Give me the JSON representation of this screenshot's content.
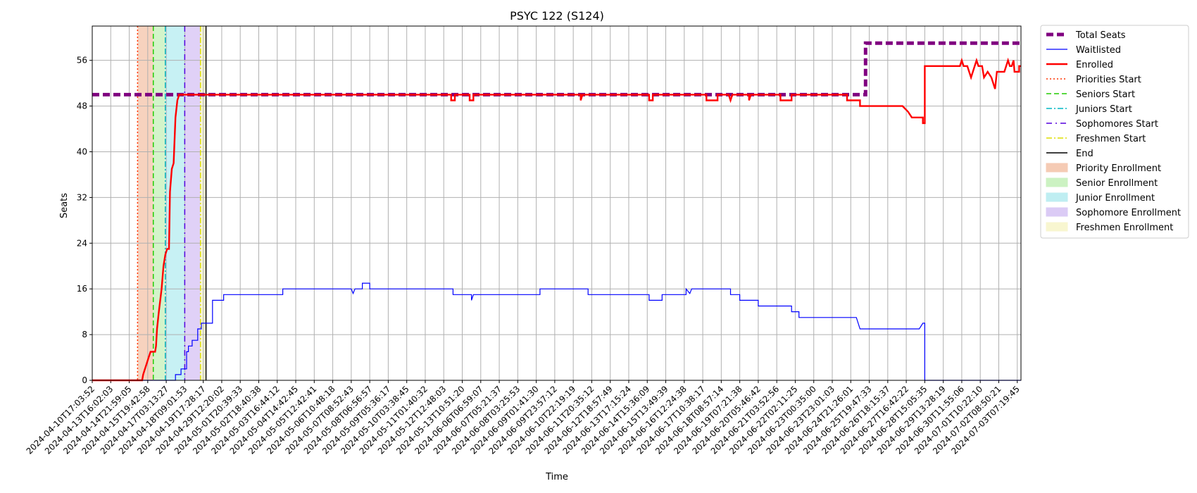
{
  "chart_data": {
    "type": "line",
    "title": "PSYC 122 (S124)",
    "xlabel": "Time",
    "ylabel": "Seats",
    "ylim": [
      0,
      62
    ],
    "yticks": [
      0,
      8,
      16,
      24,
      32,
      40,
      48,
      56
    ],
    "grid": true,
    "legend_position": "outside-right",
    "xtick_labels": [
      "2024-04-10T17:03:52",
      "2024-04-13T16:02:03",
      "2024-04-14T21:59:05",
      "2024-04-15T19:42:58",
      "2024-04-17T03:13:27",
      "2024-04-18T09:01:53",
      "2024-04-19T17:28:17",
      "2024-04-29T12:20:02",
      "2024-05-01T20:39:33",
      "2024-05-02T18:40:38",
      "2024-05-03T16:44:12",
      "2024-05-04T14:42:45",
      "2024-05-05T12:42:41",
      "2024-05-06T10:48:18",
      "2024-05-07T08:52:43",
      "2024-05-08T06:56:57",
      "2024-05-09T05:36:17",
      "2024-05-10T03:38:45",
      "2024-05-11T01:40:32",
      "2024-05-12T12:48:03",
      "2024-05-13T10:51:20",
      "2024-06-06T06:59:07",
      "2024-06-07T05:21:37",
      "2024-06-08T03:25:53",
      "2024-06-09T01:41:30",
      "2024-06-09T23:57:12",
      "2024-06-10T22:19:19",
      "2024-06-11T20:35:12",
      "2024-06-12T18:57:49",
      "2024-06-13T17:15:24",
      "2024-06-14T15:36:09",
      "2024-06-15T13:49:39",
      "2024-06-16T12:24:38",
      "2024-06-17T10:38:17",
      "2024-06-18T08:57:14",
      "2024-06-19T07:21:38",
      "2024-06-20T05:46:42",
      "2024-06-21T03:52:56",
      "2024-06-22T02:11:25",
      "2024-06-23T00:35:00",
      "2024-06-23T23:01:03",
      "2024-06-24T21:26:01",
      "2024-06-25T19:47:33",
      "2024-06-26T18:15:37",
      "2024-06-27T16:42:22",
      "2024-06-28T15:05:35",
      "2024-06-29T13:28:19",
      "2024-06-30T11:55:06",
      "2024-07-01T10:22:10",
      "2024-07-02T08:50:21",
      "2024-07-03T07:19:45"
    ],
    "xlim": [
      0,
      50.2
    ],
    "series": [
      {
        "name": "Total Seats",
        "color": "#800080",
        "style": "dashed-thick",
        "points": [
          [
            0,
            50
          ],
          [
            41.8,
            50
          ],
          [
            41.8,
            59
          ],
          [
            50.2,
            59
          ]
        ]
      },
      {
        "name": "Waitlisted",
        "color": "#0000ff",
        "style": "solid-thin",
        "points": [
          [
            0,
            0
          ],
          [
            4.5,
            0
          ],
          [
            4.5,
            1
          ],
          [
            4.8,
            1
          ],
          [
            4.8,
            2
          ],
          [
            5.1,
            2
          ],
          [
            5.1,
            5
          ],
          [
            5.2,
            5
          ],
          [
            5.2,
            6
          ],
          [
            5.4,
            6
          ],
          [
            5.4,
            7
          ],
          [
            5.7,
            7
          ],
          [
            5.7,
            9
          ],
          [
            5.9,
            9
          ],
          [
            5.9,
            10
          ],
          [
            6.5,
            10
          ],
          [
            6.5,
            14
          ],
          [
            7.1,
            14
          ],
          [
            7.1,
            15
          ],
          [
            10.3,
            15
          ],
          [
            10.3,
            16
          ],
          [
            14.0,
            16
          ],
          [
            14.1,
            15.2
          ],
          [
            14.2,
            16
          ],
          [
            14.6,
            16
          ],
          [
            14.6,
            17
          ],
          [
            15.0,
            17
          ],
          [
            15.0,
            16
          ],
          [
            19.5,
            16
          ],
          [
            19.5,
            15
          ],
          [
            20.5,
            15
          ],
          [
            20.5,
            14
          ],
          [
            20.6,
            15
          ],
          [
            24.2,
            15
          ],
          [
            24.2,
            16
          ],
          [
            26.8,
            16
          ],
          [
            26.8,
            15
          ],
          [
            30.1,
            15
          ],
          [
            30.1,
            14
          ],
          [
            30.8,
            14
          ],
          [
            30.8,
            15
          ],
          [
            32.1,
            15
          ],
          [
            32.1,
            16
          ],
          [
            32.3,
            15.2
          ],
          [
            32.4,
            16
          ],
          [
            34.5,
            16
          ],
          [
            34.5,
            15
          ],
          [
            35.0,
            15
          ],
          [
            35.0,
            14
          ],
          [
            36.0,
            14
          ],
          [
            36.0,
            13
          ],
          [
            37.8,
            13
          ],
          [
            37.8,
            12
          ],
          [
            38.2,
            12
          ],
          [
            38.2,
            11
          ],
          [
            41.3,
            11
          ],
          [
            41.4,
            10
          ],
          [
            41.5,
            9
          ],
          [
            44.7,
            9
          ],
          [
            44.9,
            10
          ],
          [
            45.0,
            10
          ],
          [
            45.0,
            0
          ],
          [
            50.2,
            0
          ]
        ]
      },
      {
        "name": "Enrolled",
        "color": "#ff0000",
        "style": "solid-thick",
        "points": [
          [
            0,
            0
          ],
          [
            2.7,
            0
          ],
          [
            2.75,
            1
          ],
          [
            2.85,
            2
          ],
          [
            2.95,
            3
          ],
          [
            3.05,
            4
          ],
          [
            3.15,
            5
          ],
          [
            3.4,
            5
          ],
          [
            3.45,
            6
          ],
          [
            3.5,
            9
          ],
          [
            3.6,
            12
          ],
          [
            3.75,
            16
          ],
          [
            3.85,
            20
          ],
          [
            3.95,
            22
          ],
          [
            4.05,
            23
          ],
          [
            4.15,
            23
          ],
          [
            4.2,
            33
          ],
          [
            4.3,
            37
          ],
          [
            4.4,
            38
          ],
          [
            4.45,
            42
          ],
          [
            4.5,
            46
          ],
          [
            4.6,
            49
          ],
          [
            4.7,
            50
          ],
          [
            19.4,
            50
          ],
          [
            19.4,
            49
          ],
          [
            19.6,
            49
          ],
          [
            19.6,
            50
          ],
          [
            20.4,
            50
          ],
          [
            20.4,
            49
          ],
          [
            20.6,
            49
          ],
          [
            20.6,
            50
          ],
          [
            26.4,
            50
          ],
          [
            26.4,
            49
          ],
          [
            26.5,
            50
          ],
          [
            30.1,
            50
          ],
          [
            30.1,
            49
          ],
          [
            30.3,
            49
          ],
          [
            30.3,
            50
          ],
          [
            33.2,
            50
          ],
          [
            33.2,
            49
          ],
          [
            33.8,
            49
          ],
          [
            33.8,
            50
          ],
          [
            34.4,
            50
          ],
          [
            34.5,
            49
          ],
          [
            34.6,
            50
          ],
          [
            35.5,
            50
          ],
          [
            35.5,
            49
          ],
          [
            35.6,
            50
          ],
          [
            37.2,
            50
          ],
          [
            37.2,
            49
          ],
          [
            37.8,
            49
          ],
          [
            37.8,
            50
          ],
          [
            40.8,
            50
          ],
          [
            40.8,
            49
          ],
          [
            41.5,
            49
          ],
          [
            41.5,
            48
          ],
          [
            43.8,
            48
          ],
          [
            44.1,
            47
          ],
          [
            44.3,
            46
          ],
          [
            44.9,
            46
          ],
          [
            44.9,
            45
          ],
          [
            45.0,
            45
          ],
          [
            45.0,
            55
          ],
          [
            46.9,
            55
          ],
          [
            47.0,
            56
          ],
          [
            47.1,
            55
          ],
          [
            47.3,
            55
          ],
          [
            47.4,
            54
          ],
          [
            47.5,
            53
          ],
          [
            47.6,
            54
          ],
          [
            47.7,
            55
          ],
          [
            47.8,
            56
          ],
          [
            47.9,
            55
          ],
          [
            48.1,
            55
          ],
          [
            48.2,
            53
          ],
          [
            48.4,
            54
          ],
          [
            48.6,
            53
          ],
          [
            48.7,
            52
          ],
          [
            48.8,
            51
          ],
          [
            48.9,
            54
          ],
          [
            49.3,
            54
          ],
          [
            49.4,
            55
          ],
          [
            49.5,
            56
          ],
          [
            49.6,
            55
          ],
          [
            49.7,
            55
          ],
          [
            49.8,
            56
          ],
          [
            49.85,
            54
          ],
          [
            50.1,
            54
          ],
          [
            50.1,
            55
          ],
          [
            50.2,
            55
          ]
        ]
      }
    ],
    "vertical_lines": [
      {
        "name": "Priorities Start",
        "x": 2.45,
        "color": "#ff3300",
        "style": "dotted"
      },
      {
        "name": "Seniors Start",
        "x": 3.3,
        "color": "#22cc00",
        "style": "dashed"
      },
      {
        "name": "Juniors Start",
        "x": 3.95,
        "color": "#00b7c3",
        "style": "dashdot"
      },
      {
        "name": "Sophomores Start",
        "x": 5.0,
        "color": "#5500dd",
        "style": "dashdot-sparse"
      },
      {
        "name": "Freshmen Start",
        "x": 5.85,
        "color": "#dddd00",
        "style": "dashdot"
      },
      {
        "name": "End",
        "x": 6.15,
        "color": "#000000",
        "style": "solid"
      }
    ],
    "shaded_regions": [
      {
        "name": "Priority Enrollment",
        "x0": 2.45,
        "x1": 3.3,
        "color": "#f4c3a8"
      },
      {
        "name": "Senior Enrollment",
        "x0": 3.3,
        "x1": 3.95,
        "color": "#c4f0b8"
      },
      {
        "name": "Junior Enrollment",
        "x0": 3.95,
        "x1": 5.0,
        "color": "#b4ecf0"
      },
      {
        "name": "Sophomore Enrollment",
        "x0": 5.0,
        "x1": 5.85,
        "color": "#d5c2f4"
      },
      {
        "name": "Freshmen Enrollment",
        "x0": 5.85,
        "x1": 6.15,
        "color": "#f7f5c8"
      }
    ],
    "legend": [
      {
        "label": "Total Seats",
        "kind": "line",
        "color": "#800080",
        "style": "dashed-thick"
      },
      {
        "label": "Waitlisted",
        "kind": "line",
        "color": "#0000ff",
        "style": "solid-thin"
      },
      {
        "label": "Enrolled",
        "kind": "line",
        "color": "#ff0000",
        "style": "solid-thick"
      },
      {
        "label": "Priorities Start",
        "kind": "line",
        "color": "#ff3300",
        "style": "dotted"
      },
      {
        "label": "Seniors Start",
        "kind": "line",
        "color": "#22cc00",
        "style": "dashed"
      },
      {
        "label": "Juniors Start",
        "kind": "line",
        "color": "#00b7c3",
        "style": "dashdot"
      },
      {
        "label": "Sophomores Start",
        "kind": "line",
        "color": "#5500dd",
        "style": "dashdot-sparse"
      },
      {
        "label": "Freshmen Start",
        "kind": "line",
        "color": "#dddd00",
        "style": "dashdot"
      },
      {
        "label": "End",
        "kind": "line",
        "color": "#000000",
        "style": "solid"
      },
      {
        "label": "Priority Enrollment",
        "kind": "patch",
        "color": "#f4c3a8"
      },
      {
        "label": "Senior Enrollment",
        "kind": "patch",
        "color": "#c4f0b8"
      },
      {
        "label": "Junior Enrollment",
        "kind": "patch",
        "color": "#b4ecf0"
      },
      {
        "label": "Sophomore Enrollment",
        "kind": "patch",
        "color": "#d5c2f4"
      },
      {
        "label": "Freshmen Enrollment",
        "kind": "patch",
        "color": "#f7f5c8"
      }
    ]
  }
}
